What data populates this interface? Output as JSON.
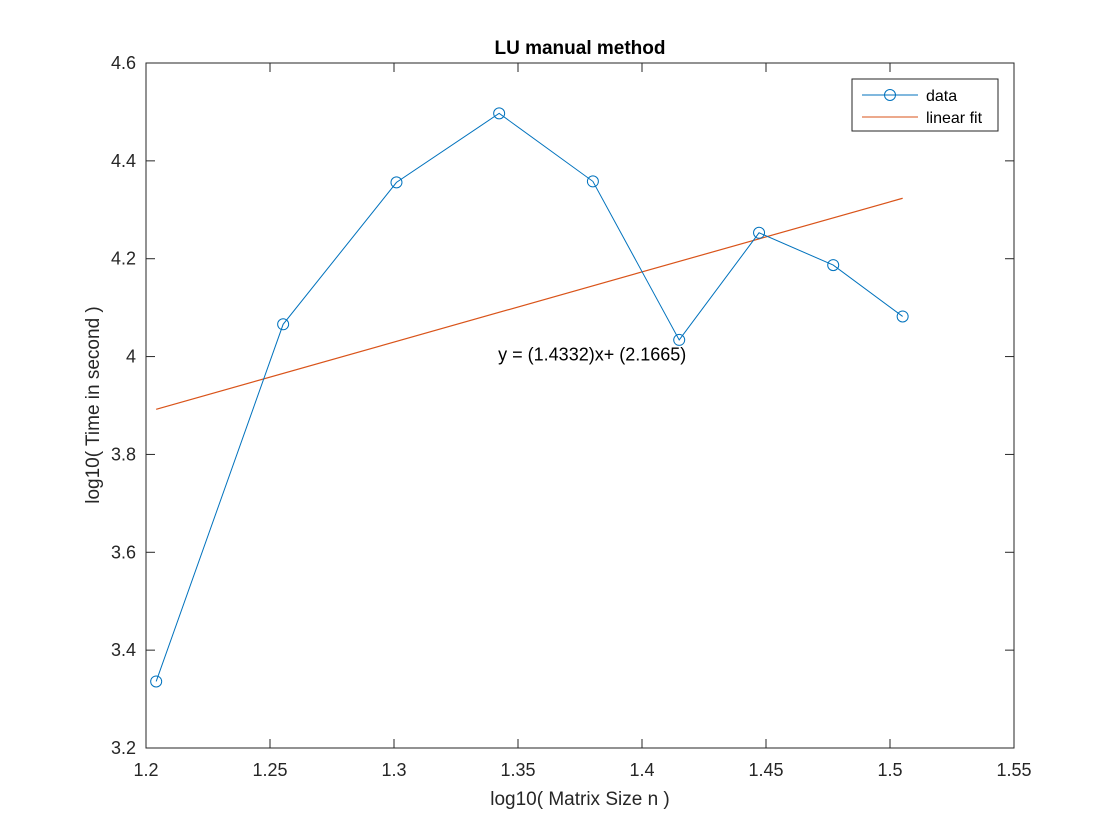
{
  "chart_data": {
    "type": "line",
    "title": "LU manual method",
    "xlabel": "log10( Matrix Size n )",
    "ylabel": "log10( Time in second )",
    "xlim": [
      1.2,
      1.55
    ],
    "ylim": [
      3.2,
      4.6
    ],
    "xticks": [
      "1.2",
      "1.25",
      "1.3",
      "1.35",
      "1.4",
      "1.45",
      "1.5",
      "1.55"
    ],
    "yticks": [
      "3.2",
      "3.4",
      "3.6",
      "3.8",
      "4",
      "4.2",
      "4.4",
      "4.6"
    ],
    "grid": false,
    "legend_position": "top-right",
    "series": [
      {
        "name": "data",
        "color": "#0072BD",
        "marker": "circle",
        "x": [
          1.2041,
          1.2553,
          1.301,
          1.3424,
          1.3802,
          1.415,
          1.4472,
          1.4771,
          1.5051
        ],
        "y": [
          3.336,
          4.066,
          4.356,
          4.497,
          4.358,
          4.034,
          4.253,
          4.187,
          4.082
        ]
      },
      {
        "name": "linear fit",
        "color": "#D95319",
        "marker": "none",
        "x": [
          1.2041,
          1.5051
        ],
        "y": [
          3.8922,
          4.3236
        ]
      }
    ],
    "annotations": [
      {
        "text": "y = (1.4332)x+ (2.1665)",
        "x": 1.342,
        "y": 4.0
      }
    ]
  }
}
